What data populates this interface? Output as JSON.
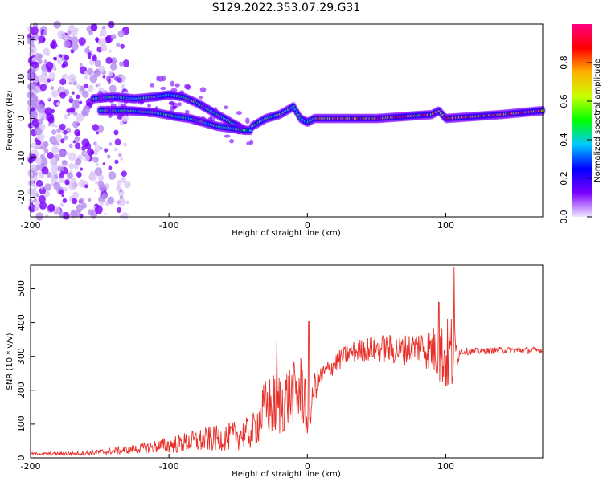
{
  "figure": {
    "title": "S129.2022.353.07.29.G31"
  },
  "chart_data": [
    {
      "type": "heatmap",
      "xlabel": "Height of straight line (km)",
      "ylabel": "Frequency (Hz)",
      "xlim": [
        -200,
        170
      ],
      "ylim": [
        -25,
        24
      ],
      "xticks": [
        -200,
        -100,
        0,
        100
      ],
      "yticks": [
        20,
        10,
        0,
        -10,
        -20
      ],
      "colorbar": {
        "label": "Normalized spectral amplitude",
        "range": [
          0.0,
          1.0
        ],
        "ticks": [
          "0.0",
          "0.2",
          "0.4",
          "0.6",
          "0.8"
        ],
        "colors": [
          "#f0e6ff",
          "#7a00ff",
          "#0000ff",
          "#00c8ff",
          "#00ff00",
          "#c8ff00",
          "#ffb000",
          "#ff0000",
          "#ff0080"
        ]
      },
      "ridges": [
        {
          "x": [
            -155,
            -140,
            -125,
            -110,
            -100,
            -90,
            -80,
            -70,
            -60,
            -50,
            -45,
            -40
          ],
          "y": [
            5,
            5.5,
            5,
            5.5,
            6,
            5.5,
            4,
            2,
            0,
            -2,
            -3,
            -3
          ]
        },
        {
          "x": [
            -150,
            -130,
            -110,
            -95,
            -85,
            -75,
            -65,
            -55,
            -45
          ],
          "y": [
            2,
            2,
            1.5,
            0.5,
            0,
            -1,
            -2,
            -2.5,
            -3
          ]
        },
        {
          "x": [
            -40,
            -30,
            -20,
            -15,
            -10,
            -5,
            0,
            5,
            10,
            50,
            90,
            95,
            100,
            140,
            170
          ],
          "y": [
            -2,
            0,
            1,
            2,
            3,
            0,
            -1,
            0,
            0,
            0,
            1,
            2,
            0,
            1,
            2
          ]
        }
      ]
    },
    {
      "type": "line",
      "xlabel": "Height of straight line (km)",
      "ylabel": "SNR (10 * v/v)",
      "xlim": [
        -200,
        170
      ],
      "ylim": [
        0,
        570
      ],
      "xticks": [
        -200,
        -100,
        0,
        100
      ],
      "yticks": [
        0,
        100,
        200,
        300,
        400,
        500
      ],
      "color": "#e8302a",
      "envelope": {
        "x": [
          -200,
          -180,
          -160,
          -140,
          -120,
          -100,
          -80,
          -60,
          -40,
          -30,
          -20,
          -10,
          -2,
          0,
          5,
          10,
          20,
          30,
          40,
          50,
          60,
          70,
          80,
          90,
          100,
          105,
          110,
          120,
          140,
          160,
          170
        ],
        "mean": [
          12,
          12,
          14,
          20,
          28,
          38,
          50,
          60,
          75,
          150,
          160,
          190,
          200,
          60,
          210,
          240,
          280,
          310,
          320,
          325,
          320,
          320,
          330,
          320,
          300,
          310,
          315,
          315,
          318,
          318,
          318
        ],
        "amplitude": [
          4,
          5,
          7,
          10,
          15,
          25,
          35,
          40,
          50,
          90,
          100,
          95,
          120,
          20,
          50,
          35,
          30,
          30,
          35,
          40,
          45,
          45,
          50,
          70,
          110,
          130,
          12,
          10,
          10,
          10,
          10
        ]
      },
      "peaks": [
        {
          "x": -22,
          "y": 350
        },
        {
          "x": 1,
          "y": 405
        },
        {
          "x": 95,
          "y": 460
        },
        {
          "x": 106,
          "y": 565
        }
      ]
    }
  ]
}
